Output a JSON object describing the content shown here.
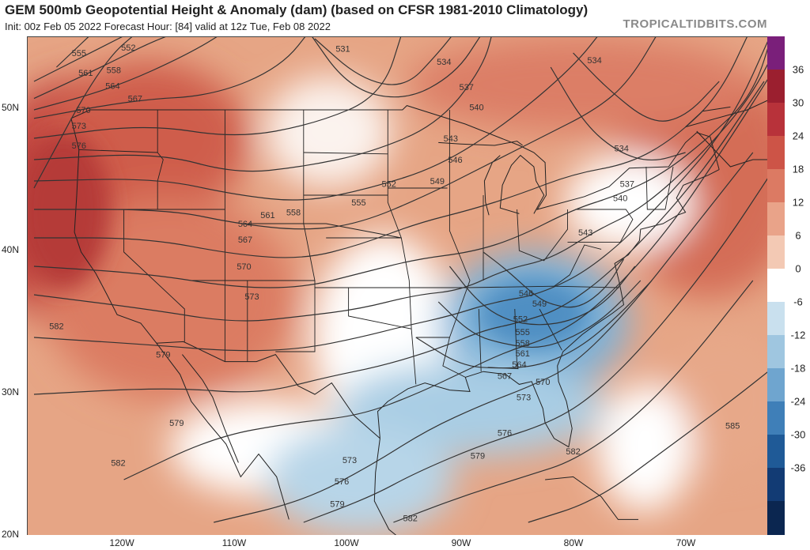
{
  "header": {
    "title": "GEM 500mb Geopotential Height & Anomaly (dam) (based on CFSR 1981-2010 Climatology)",
    "subtitle": "Init: 00z Feb 05 2022   Forecast Hour: [84]   valid at 12z Tue, Feb 08 2022",
    "brand": "TROPICALTIDBITS.COM"
  },
  "axes": {
    "lat_labels": [
      "50N",
      "40N",
      "30N",
      "20N"
    ],
    "lon_labels": [
      "120W",
      "110W",
      "100W",
      "90W",
      "80W",
      "70W"
    ]
  },
  "colorbar": {
    "ticks": [
      "36",
      "30",
      "24",
      "18",
      "12",
      "6",
      "0",
      "-6",
      "-12",
      "-18",
      "-24",
      "-30",
      "-36"
    ],
    "colors": [
      "#7a1f7a",
      "#9b1f2f",
      "#b8323a",
      "#cd5447",
      "#dc7a63",
      "#e9a389",
      "#f3c9b4",
      "#ffffff",
      "#c9e0ee",
      "#9fc6e0",
      "#6fa5cf",
      "#3f7fb8",
      "#1f5a97",
      "#123b74",
      "#0b2650"
    ]
  },
  "contour_labels": [
    "531",
    "534",
    "537",
    "540",
    "543",
    "546",
    "549",
    "552",
    "555",
    "558",
    "561",
    "564",
    "567",
    "570",
    "573",
    "576",
    "579",
    "582",
    "585"
  ],
  "map_labels": [
    {
      "text": "531",
      "lon": -100.5,
      "lat": 53.3
    },
    {
      "text": "534",
      "lon": -91.5,
      "lat": 52.4
    },
    {
      "text": "537",
      "lon": -89.5,
      "lat": 50.6
    },
    {
      "text": "540",
      "lon": -88.6,
      "lat": 49.2
    },
    {
      "text": "543",
      "lon": -90.9,
      "lat": 47.0
    },
    {
      "text": "546",
      "lon": -90.5,
      "lat": 45.5
    },
    {
      "text": "549",
      "lon": -92.1,
      "lat": 44.0
    },
    {
      "text": "552",
      "lon": -96.4,
      "lat": 43.8
    },
    {
      "text": "555",
      "lon": -99.1,
      "lat": 42.5
    },
    {
      "text": "558",
      "lon": -104.9,
      "lat": 41.8
    },
    {
      "text": "561",
      "lon": -107.2,
      "lat": 41.6
    },
    {
      "text": "564",
      "lon": -109.2,
      "lat": 41.0
    },
    {
      "text": "567",
      "lon": -109.2,
      "lat": 39.9
    },
    {
      "text": "570",
      "lon": -109.3,
      "lat": 38.0
    },
    {
      "text": "573",
      "lon": -108.6,
      "lat": 35.9
    },
    {
      "text": "555",
      "lon": -124.0,
      "lat": 53.0
    },
    {
      "text": "552",
      "lon": -119.6,
      "lat": 53.4
    },
    {
      "text": "558",
      "lon": -120.9,
      "lat": 51.8
    },
    {
      "text": "561",
      "lon": -123.4,
      "lat": 51.6
    },
    {
      "text": "564",
      "lon": -121.0,
      "lat": 50.7
    },
    {
      "text": "567",
      "lon": -119.0,
      "lat": 49.8
    },
    {
      "text": "570",
      "lon": -123.6,
      "lat": 49.0
    },
    {
      "text": "573",
      "lon": -124.0,
      "lat": 47.9
    },
    {
      "text": "576",
      "lon": -124.0,
      "lat": 46.5
    },
    {
      "text": "582",
      "lon": -126.0,
      "lat": 33.8
    },
    {
      "text": "579",
      "lon": -116.5,
      "lat": 31.8
    },
    {
      "text": "579",
      "lon": -115.3,
      "lat": 27.0
    },
    {
      "text": "582",
      "lon": -120.5,
      "lat": 24.2
    },
    {
      "text": "534",
      "lon": -78.1,
      "lat": 52.5
    },
    {
      "text": "534",
      "lon": -75.7,
      "lat": 46.3
    },
    {
      "text": "537",
      "lon": -75.2,
      "lat": 43.8
    },
    {
      "text": "540",
      "lon": -75.8,
      "lat": 42.8
    },
    {
      "text": "543",
      "lon": -78.9,
      "lat": 40.4
    },
    {
      "text": "546",
      "lon": -84.2,
      "lat": 36.1
    },
    {
      "text": "549",
      "lon": -83.0,
      "lat": 35.4
    },
    {
      "text": "552",
      "lon": -84.7,
      "lat": 34.3
    },
    {
      "text": "555",
      "lon": -84.5,
      "lat": 33.4
    },
    {
      "text": "558",
      "lon": -84.5,
      "lat": 32.6
    },
    {
      "text": "561",
      "lon": -84.5,
      "lat": 31.9
    },
    {
      "text": "564",
      "lon": -84.8,
      "lat": 31.1
    },
    {
      "text": "567",
      "lon": -86.1,
      "lat": 30.3
    },
    {
      "text": "570",
      "lon": -82.7,
      "lat": 29.9
    },
    {
      "text": "573",
      "lon": -84.4,
      "lat": 28.8
    },
    {
      "text": "576",
      "lon": -86.1,
      "lat": 26.3
    },
    {
      "text": "579",
      "lon": -88.5,
      "lat": 24.7
    },
    {
      "text": "582",
      "lon": -80.0,
      "lat": 25.0
    },
    {
      "text": "585",
      "lon": -65.8,
      "lat": 26.8
    },
    {
      "text": "573",
      "lon": -99.9,
      "lat": 24.4
    },
    {
      "text": "576",
      "lon": -100.6,
      "lat": 22.9
    },
    {
      "text": "579",
      "lon": -101.0,
      "lat": 21.3
    },
    {
      "text": "582",
      "lon": -94.5,
      "lat": 20.3
    }
  ]
}
